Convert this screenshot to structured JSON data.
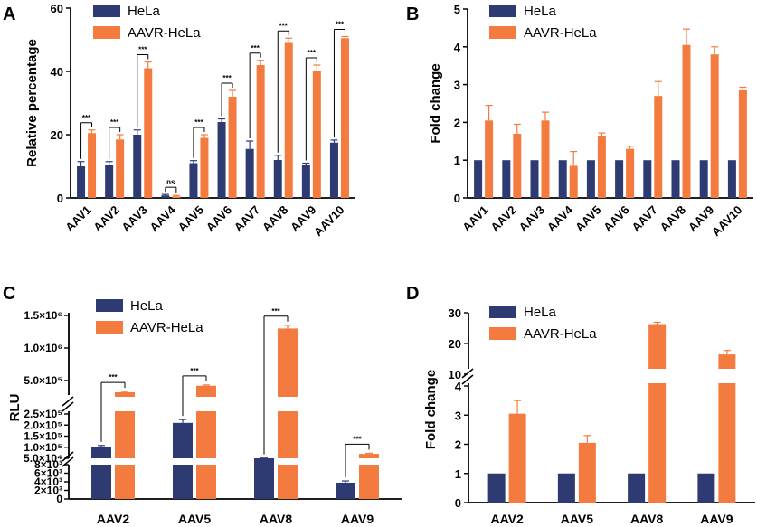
{
  "colors": {
    "hela": "#2e3a72",
    "aavr": "#f47b3f",
    "axis": "#000000"
  },
  "chart_data": [
    {
      "panel": "A",
      "type": "bar",
      "ylabel": "Relative percentage",
      "ylim": [
        0,
        60
      ],
      "yticks": [
        0,
        20,
        40,
        60
      ],
      "legend": [
        "HeLa",
        "AAVR-HeLa"
      ],
      "categories": [
        "AAV1",
        "AAV2",
        "AAV3",
        "AAV4",
        "AAV5",
        "AAV6",
        "AAV7",
        "AAV8",
        "AAV9",
        "AAV10"
      ],
      "series": [
        {
          "name": "HeLa",
          "values": [
            10,
            10.5,
            20,
            0.8,
            11,
            24,
            15.5,
            12,
            10.5,
            17.5
          ],
          "errors": [
            1.5,
            1,
            1.5,
            0.3,
            0.8,
            1,
            2.5,
            1.5,
            0.5,
            0.8
          ]
        },
        {
          "name": "AAVR-HeLa",
          "values": [
            20.5,
            18.5,
            41,
            0.5,
            19,
            32,
            42,
            49,
            40,
            50.5
          ],
          "errors": [
            1,
            1.5,
            2,
            0.3,
            1,
            2,
            1.5,
            1.5,
            2,
            0.5
          ]
        }
      ],
      "significance": [
        "***",
        "***",
        "***",
        "ns",
        "***",
        "***",
        "***",
        "***",
        "***",
        "***"
      ]
    },
    {
      "panel": "B",
      "type": "bar",
      "ylabel": "Fold change",
      "ylim": [
        0,
        5
      ],
      "yticks": [
        0,
        1,
        2,
        3,
        4,
        5
      ],
      "legend": [
        "HeLa",
        "AAVR-HeLa"
      ],
      "categories": [
        "AAV1",
        "AAV2",
        "AAV3",
        "AAV4",
        "AAV5",
        "AAV6",
        "AAV7",
        "AAV8",
        "AAV9",
        "AAV10"
      ],
      "series": [
        {
          "name": "HeLa",
          "values": [
            1,
            1,
            1,
            1,
            1,
            1,
            1,
            1,
            1,
            1
          ],
          "errors": [
            0,
            0,
            0,
            0,
            0,
            0,
            0,
            0,
            0,
            0
          ]
        },
        {
          "name": "AAVR-HeLa",
          "values": [
            2.05,
            1.7,
            2.05,
            0.85,
            1.65,
            1.3,
            2.7,
            4.05,
            3.8,
            2.85
          ],
          "errors": [
            0.4,
            0.25,
            0.22,
            0.38,
            0.07,
            0.07,
            0.38,
            0.42,
            0.2,
            0.08
          ]
        }
      ]
    },
    {
      "panel": "C",
      "type": "bar",
      "ylabel": "RLU",
      "axis_break": true,
      "segments": [
        {
          "range": [
            0,
            8000
          ],
          "ticks": [
            0,
            2000,
            4000,
            6000,
            8000
          ],
          "tick_labels": [
            "0",
            "2×10³",
            "4×10³",
            "6×10³",
            "8×10³"
          ]
        },
        {
          "range": [
            0,
            250000
          ],
          "ticks": [
            50000,
            100000,
            150000,
            200000,
            250000
          ],
          "tick_labels": [
            "5.0×10⁴",
            "1.0×10⁵",
            "1.5×10⁵",
            "2.0×10⁵",
            "2.5×10⁵"
          ]
        },
        {
          "range": [
            250000,
            1500000
          ],
          "ticks": [
            500000,
            1000000,
            1500000
          ],
          "tick_labels": [
            "5.0×10⁵",
            "1.0×10⁶",
            "1.5×10⁶"
          ]
        }
      ],
      "legend": [
        "HeLa",
        "AAVR-HeLa"
      ],
      "categories": [
        "AAV2",
        "AAV5",
        "AAV8",
        "AAV9"
      ],
      "series": [
        {
          "name": "HeLa",
          "values": [
            100000,
            210000,
            50000,
            3800
          ],
          "errors": [
            8000,
            15000,
            1000,
            400
          ]
        },
        {
          "name": "AAVR-HeLa",
          "values": [
            320000,
            420000,
            1300000,
            70000
          ],
          "errors": [
            12000,
            12000,
            50000,
            3000
          ]
        }
      ],
      "significance": [
        "***",
        "***",
        "***",
        "***"
      ]
    },
    {
      "panel": "D",
      "type": "bar",
      "ylabel": "Fold change",
      "axis_break": true,
      "segments": [
        {
          "range": [
            0,
            4
          ],
          "ticks": [
            0,
            1,
            2,
            3,
            4
          ]
        },
        {
          "range": [
            7,
            30
          ],
          "ticks": [
            10,
            20,
            30
          ]
        }
      ],
      "legend": [
        "HeLa",
        "AAVR-HeLa"
      ],
      "categories": [
        "AAV2",
        "AAV5",
        "AAV8",
        "AAV9"
      ],
      "series": [
        {
          "name": "HeLa",
          "values": [
            1,
            1,
            1,
            1
          ],
          "errors": [
            0,
            0,
            0,
            0
          ]
        },
        {
          "name": "AAVR-HeLa",
          "values": [
            3.05,
            2.05,
            26.3,
            16.4
          ],
          "errors": [
            0.45,
            0.25,
            0.6,
            1.3
          ]
        }
      ]
    }
  ]
}
